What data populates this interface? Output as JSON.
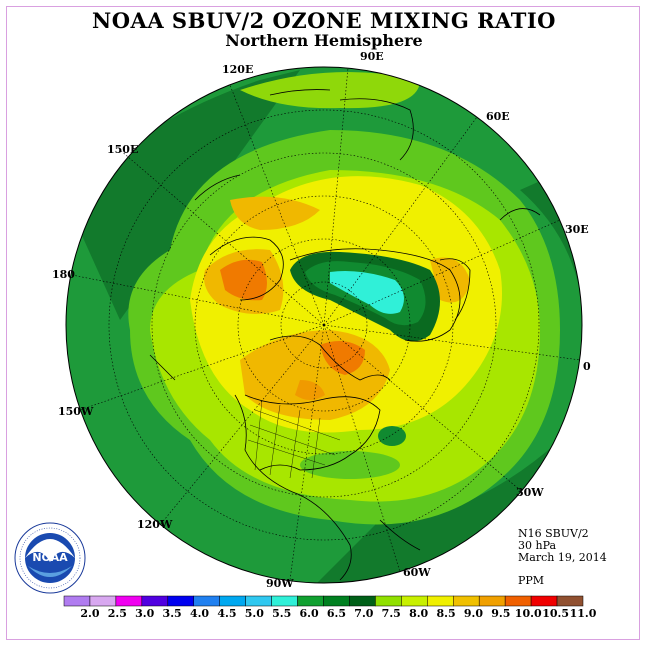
{
  "title": "NOAA SBUV/2 OZONE MIXING RATIO",
  "subtitle": "Northern Hemisphere",
  "longitude_labels": [
    "90E",
    "60E",
    "30E",
    "0",
    "30W",
    "60W",
    "90W",
    "120W",
    "150W",
    "180",
    "150E",
    "120E"
  ],
  "info": {
    "instrument": "N16 SBUV/2",
    "level": "30 hPa",
    "date": "March 19, 2014",
    "units": "PPM"
  },
  "colorbar": {
    "labels": [
      "2.0",
      "2.5",
      "3.0",
      "3.5",
      "4.0",
      "4.5",
      "5.0",
      "5.5",
      "6.0",
      "6.5",
      "7.0",
      "7.5",
      "8.0",
      "8.5",
      "9.0",
      "9.5",
      "10.0",
      "10.5",
      "11.0"
    ],
    "colors": [
      "#b07cf0",
      "#d8a8f0",
      "#f000f0",
      "#5000e0",
      "#0000f0",
      "#2080f0",
      "#00a8f0",
      "#30c8f0",
      "#30f0d8",
      "#10a030",
      "#008020",
      "#006018",
      "#90e000",
      "#c8f000",
      "#f0f000",
      "#f0c000",
      "#f0a000",
      "#f06000",
      "#f00000",
      "#905030"
    ]
  },
  "logo": {
    "icon": "noaa-logo-icon",
    "text": "NOAA",
    "ring_text": "NATIONAL OCEANIC AND ATMOSPHERIC ADMINISTRATION · U.S. DEPARTMENT OF COMMERCE"
  }
}
